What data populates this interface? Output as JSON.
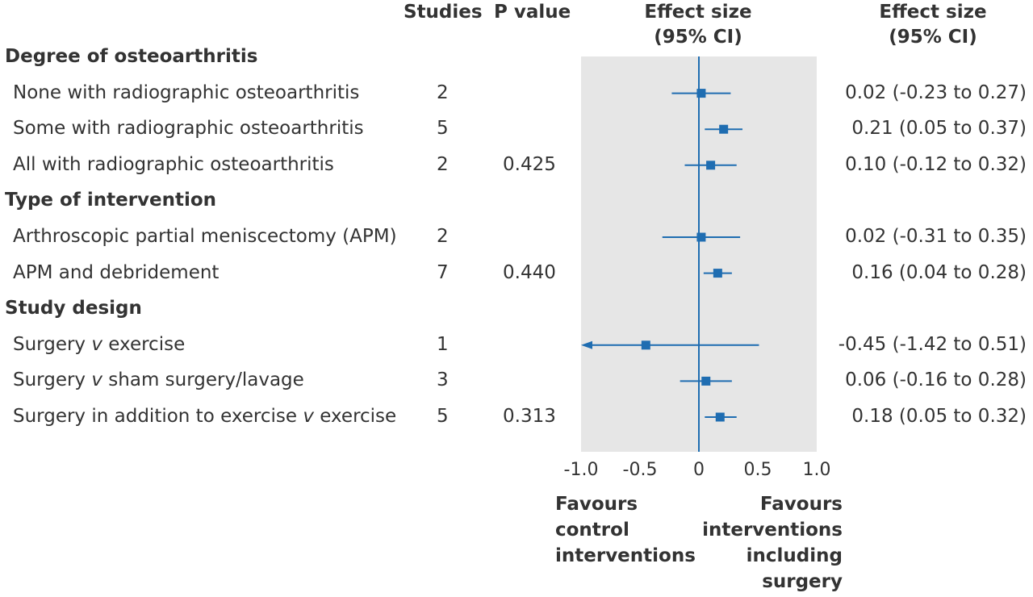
{
  "headers": {
    "studies": "Studies",
    "p_value": "P value",
    "effect_plot_line1": "Effect size",
    "effect_plot_line2": "(95% CI)",
    "effect_text_line1": "Effect size",
    "effect_text_line2": "(95% CI)"
  },
  "rows": [
    {
      "kind": "group",
      "label": "Degree of osteoarthritis"
    },
    {
      "kind": "item",
      "label_pre": "None with radiographic osteoarthritis",
      "label_em": "",
      "label_post": "",
      "studies": "2",
      "p": "",
      "ci_text": "0.02 (-0.23 to 0.27)"
    },
    {
      "kind": "item",
      "label_pre": "Some with radiographic osteoarthritis",
      "label_em": "",
      "label_post": "",
      "studies": "5",
      "p": "",
      "ci_text": "0.21 (0.05 to 0.37)"
    },
    {
      "kind": "item",
      "label_pre": "All with radiographic osteoarthritis",
      "label_em": "",
      "label_post": "",
      "studies": "2",
      "p": "0.425",
      "ci_text": "0.10 (-0.12 to 0.32)"
    },
    {
      "kind": "group",
      "label": "Type of intervention"
    },
    {
      "kind": "item",
      "label_pre": "Arthroscopic partial meniscectomy (APM)",
      "label_em": "",
      "label_post": "",
      "studies": "2",
      "p": "",
      "ci_text": "0.02 (-0.31 to 0.35)"
    },
    {
      "kind": "item",
      "label_pre": "APM and debridement",
      "label_em": "",
      "label_post": "",
      "studies": "7",
      "p": "0.440",
      "ci_text": "0.16 (0.04 to 0.28)"
    },
    {
      "kind": "group",
      "label": "Study design"
    },
    {
      "kind": "item",
      "label_pre": "Surgery ",
      "label_em": "v",
      "label_post": " exercise",
      "studies": "1",
      "p": "",
      "ci_text": "-0.45 (-1.42 to 0.51)"
    },
    {
      "kind": "item",
      "label_pre": "Surgery ",
      "label_em": "v",
      "label_post": " sham surgery/lavage",
      "studies": "3",
      "p": "",
      "ci_text": "0.06 (-0.16 to 0.28)"
    },
    {
      "kind": "item",
      "label_pre": "Surgery in addition to exercise ",
      "label_em": "v",
      "label_post": " exercise",
      "studies": "5",
      "p": "0.313",
      "ci_text": "0.18 (0.05 to 0.32)"
    }
  ],
  "favours": {
    "left_1": "Favours",
    "left_2": "control",
    "left_3": "interventions",
    "right_1": "Favours",
    "right_2": "interventions",
    "right_3": "including",
    "right_4": "surgery"
  },
  "colors": {
    "marker": "#1f6db1",
    "panel": "#e6e6e6",
    "text": "#333333"
  },
  "chart_data": {
    "type": "forest",
    "xlim": [
      -1.0,
      1.0
    ],
    "xticks": [
      -1.0,
      -0.5,
      0,
      0.5,
      1.0
    ],
    "xtick_labels": [
      "-1.0",
      "-0.5",
      "0",
      "0.5",
      "1.0"
    ],
    "reference_line": 0,
    "series": [
      {
        "label": "None with radiographic osteoarthritis",
        "estimate": 0.02,
        "lower": -0.23,
        "upper": 0.27
      },
      {
        "label": "Some with radiographic osteoarthritis",
        "estimate": 0.21,
        "lower": 0.05,
        "upper": 0.37
      },
      {
        "label": "All with radiographic osteoarthritis",
        "estimate": 0.1,
        "lower": -0.12,
        "upper": 0.32
      },
      {
        "label": "Arthroscopic partial meniscectomy (APM)",
        "estimate": 0.02,
        "lower": -0.31,
        "upper": 0.35
      },
      {
        "label": "APM and debridement",
        "estimate": 0.16,
        "lower": 0.04,
        "upper": 0.28
      },
      {
        "label": "Surgery v exercise",
        "estimate": -0.45,
        "lower": -1.42,
        "upper": 0.51
      },
      {
        "label": "Surgery v sham surgery/lavage",
        "estimate": 0.06,
        "lower": -0.16,
        "upper": 0.28
      },
      {
        "label": "Surgery in addition to exercise v exercise",
        "estimate": 0.18,
        "lower": 0.05,
        "upper": 0.32
      }
    ]
  }
}
